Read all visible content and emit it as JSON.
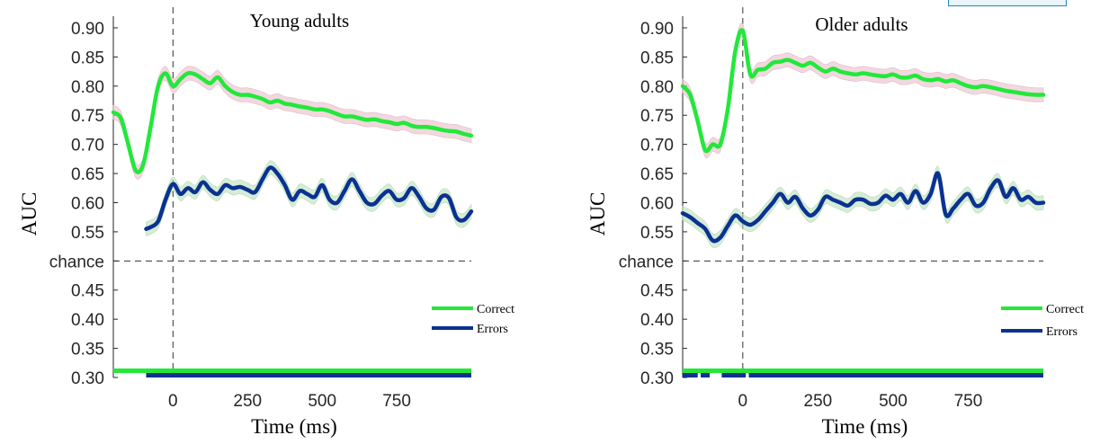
{
  "colors": {
    "correct": "#22e83a",
    "errors": "#0a3291",
    "correct_band": "#e6b8c4",
    "errors_band": "#b5dcb5",
    "axis": "#262626"
  },
  "chart_data": [
    {
      "type": "line",
      "title": "Young adults",
      "xlabel": "Time (ms)",
      "ylabel": "AUC",
      "xlim": [
        -200,
        1000
      ],
      "ylim": [
        0.3,
        0.92
      ],
      "xticks": [
        "0",
        "250",
        "500",
        "750"
      ],
      "yticks": [
        "0.30",
        "0.35",
        "0.40",
        "0.45",
        "chance",
        "0.55",
        "0.60",
        "0.65",
        "0.70",
        "0.75",
        "0.80",
        "0.85",
        "0.90"
      ],
      "chance_level": 0.5,
      "legend": "lower-right",
      "series": [
        {
          "name": "Correct",
          "x": [
            -200,
            -175,
            -150,
            -125,
            -100,
            -75,
            -50,
            -25,
            0,
            25,
            50,
            75,
            100,
            125,
            150,
            175,
            200,
            225,
            250,
            275,
            300,
            325,
            350,
            375,
            400,
            425,
            450,
            475,
            500,
            525,
            550,
            575,
            600,
            625,
            650,
            675,
            700,
            725,
            750,
            775,
            800,
            825,
            850,
            875,
            900,
            925,
            950,
            975,
            1000
          ],
          "y": [
            0.755,
            0.745,
            0.7,
            0.655,
            0.665,
            0.73,
            0.8,
            0.822,
            0.8,
            0.812,
            0.822,
            0.82,
            0.812,
            0.805,
            0.815,
            0.8,
            0.79,
            0.785,
            0.785,
            0.782,
            0.778,
            0.772,
            0.775,
            0.77,
            0.768,
            0.765,
            0.763,
            0.76,
            0.76,
            0.757,
            0.752,
            0.748,
            0.748,
            0.745,
            0.742,
            0.743,
            0.74,
            0.738,
            0.735,
            0.737,
            0.732,
            0.73,
            0.73,
            0.728,
            0.725,
            0.723,
            0.722,
            0.718,
            0.715
          ]
        },
        {
          "name": "Errors",
          "x": [
            -90,
            -75,
            -50,
            -25,
            0,
            25,
            50,
            75,
            100,
            125,
            150,
            175,
            200,
            225,
            250,
            275,
            300,
            325,
            350,
            375,
            400,
            425,
            450,
            475,
            500,
            525,
            550,
            575,
            600,
            625,
            650,
            675,
            700,
            725,
            750,
            775,
            800,
            825,
            850,
            875,
            900,
            925,
            950,
            975,
            1000
          ],
          "y": [
            0.555,
            0.558,
            0.568,
            0.605,
            0.632,
            0.615,
            0.625,
            0.618,
            0.635,
            0.622,
            0.615,
            0.63,
            0.625,
            0.627,
            0.622,
            0.618,
            0.64,
            0.66,
            0.65,
            0.63,
            0.605,
            0.62,
            0.615,
            0.61,
            0.63,
            0.605,
            0.6,
            0.62,
            0.64,
            0.62,
            0.6,
            0.598,
            0.612,
            0.62,
            0.605,
            0.608,
            0.625,
            0.61,
            0.59,
            0.588,
            0.61,
            0.608,
            0.575,
            0.57,
            0.585
          ]
        }
      ],
      "significance": {
        "correct": [
          [
            -200,
            1000
          ]
        ],
        "errors": [
          [
            -90,
            1000
          ]
        ]
      }
    },
    {
      "type": "line",
      "title": "Older adults",
      "xlabel": "Time (ms)",
      "ylabel": "AUC",
      "xlim": [
        -200,
        1000
      ],
      "ylim": [
        0.3,
        0.92
      ],
      "xticks": [
        "0",
        "250",
        "500",
        "750"
      ],
      "yticks": [
        "0.30",
        "0.35",
        "0.40",
        "0.45",
        "chance",
        "0.55",
        "0.60",
        "0.65",
        "0.70",
        "0.75",
        "0.80",
        "0.85",
        "0.90"
      ],
      "chance_level": 0.5,
      "legend": "lower-right",
      "series": [
        {
          "name": "Correct",
          "x": [
            -200,
            -175,
            -150,
            -125,
            -100,
            -75,
            -50,
            -25,
            0,
            25,
            50,
            75,
            100,
            125,
            150,
            175,
            200,
            225,
            250,
            275,
            300,
            325,
            350,
            375,
            400,
            425,
            450,
            475,
            500,
            525,
            550,
            575,
            600,
            625,
            650,
            675,
            700,
            725,
            750,
            775,
            800,
            825,
            850,
            875,
            900,
            925,
            950,
            975,
            1000
          ],
          "y": [
            0.8,
            0.785,
            0.74,
            0.69,
            0.7,
            0.7,
            0.76,
            0.86,
            0.895,
            0.82,
            0.828,
            0.83,
            0.84,
            0.842,
            0.845,
            0.84,
            0.835,
            0.84,
            0.832,
            0.825,
            0.83,
            0.825,
            0.822,
            0.82,
            0.822,
            0.82,
            0.818,
            0.817,
            0.82,
            0.815,
            0.815,
            0.818,
            0.812,
            0.81,
            0.812,
            0.808,
            0.81,
            0.805,
            0.8,
            0.798,
            0.8,
            0.798,
            0.795,
            0.792,
            0.79,
            0.788,
            0.786,
            0.785,
            0.785
          ]
        },
        {
          "name": "Errors",
          "x": [
            -200,
            -175,
            -150,
            -125,
            -100,
            -75,
            -50,
            -25,
            0,
            25,
            50,
            75,
            100,
            125,
            150,
            175,
            200,
            225,
            250,
            275,
            300,
            325,
            350,
            375,
            400,
            425,
            450,
            475,
            500,
            525,
            550,
            575,
            600,
            625,
            650,
            675,
            700,
            725,
            750,
            775,
            800,
            825,
            850,
            875,
            900,
            925,
            950,
            975,
            1000
          ],
          "y": [
            0.582,
            0.575,
            0.565,
            0.555,
            0.535,
            0.54,
            0.56,
            0.578,
            0.568,
            0.562,
            0.57,
            0.585,
            0.6,
            0.615,
            0.6,
            0.61,
            0.59,
            0.578,
            0.588,
            0.61,
            0.605,
            0.6,
            0.595,
            0.605,
            0.605,
            0.598,
            0.6,
            0.612,
            0.605,
            0.615,
            0.6,
            0.62,
            0.6,
            0.615,
            0.65,
            0.58,
            0.59,
            0.605,
            0.615,
            0.595,
            0.6,
            0.625,
            0.638,
            0.61,
            0.625,
            0.605,
            0.61,
            0.6,
            0.6
          ]
        }
      ],
      "significance": {
        "correct": [
          [
            -200,
            1000
          ]
        ],
        "errors": [
          [
            -200,
            -150
          ],
          [
            -140,
            -110
          ],
          [
            -70,
            10
          ],
          [
            20,
            1000
          ]
        ]
      }
    }
  ]
}
